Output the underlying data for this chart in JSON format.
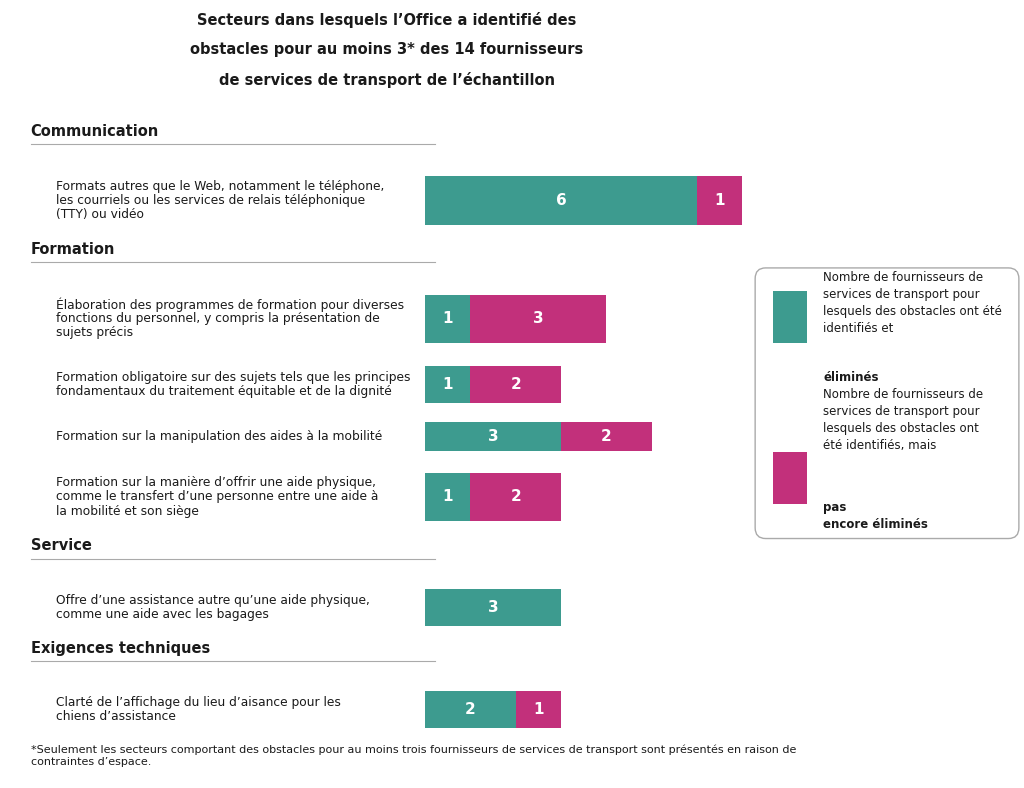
{
  "title": "Secteurs dans lesquels l’Office a identifié des\nobstacles pour au moins 3* des 14 fournisseurs\nde services de transport de l’échantillon",
  "background_color": "#ffffff",
  "teal_color": "#3d9b8f",
  "magenta_color": "#c2307b",
  "sections": [
    {
      "section_header": "Communication",
      "items": [
        {
          "label": "Formats autres que le Web, notamment le téléphone,\nles courriels ou les services de relais téléphonique\n(TTY) ou vidéo",
          "eliminated": 6,
          "not_eliminated": 1
        }
      ]
    },
    {
      "section_header": "Formation",
      "items": [
        {
          "label": "Élaboration des programmes de formation pour diverses\nfonctions du personnel, y compris la présentation de\nsujets précis",
          "eliminated": 1,
          "not_eliminated": 3
        },
        {
          "label": "Formation obligatoire sur des sujets tels que les principes\nfondamentaux du traitement équitable et de la dignité",
          "eliminated": 1,
          "not_eliminated": 2
        },
        {
          "label": "Formation sur la manipulation des aides à la mobilité",
          "eliminated": 3,
          "not_eliminated": 2
        },
        {
          "label": "Formation sur la manière d’offrir une aide physique,\ncomme le transfert d’une personne entre une aide à\nla mobilité et son siège",
          "eliminated": 1,
          "not_eliminated": 2
        }
      ]
    },
    {
      "section_header": "Service",
      "items": [
        {
          "label": "Offre d’une assistance autre qu’une aide physique,\ncomme une aide avec les bagages",
          "eliminated": 3,
          "not_eliminated": 0
        }
      ]
    },
    {
      "section_header": "Exigences techniques",
      "items": [
        {
          "label": "Clarté de l’affichage du lieu d’aisance pour les\nchiens d’assistance",
          "eliminated": 2,
          "not_eliminated": 1
        }
      ]
    }
  ],
  "legend_text1_normal": "Nombre de fournisseurs de\nservices de transport pour\nlesquels des obstacles ont été\nidentifiés et ",
  "legend_text1_bold": "éliminés",
  "legend_text2_normal": "Nombre de fournisseurs de\nservices de transport pour\nlesquels des obstacles ont\nété identifiés, mais ",
  "legend_text2_bold": "pas\nencore éliminés",
  "footnote": "*Seulement les secteurs comportant des obstacles pour au moins trois fournisseurs de services de transport sont présentés en raison de\ncontraintes d’espace."
}
